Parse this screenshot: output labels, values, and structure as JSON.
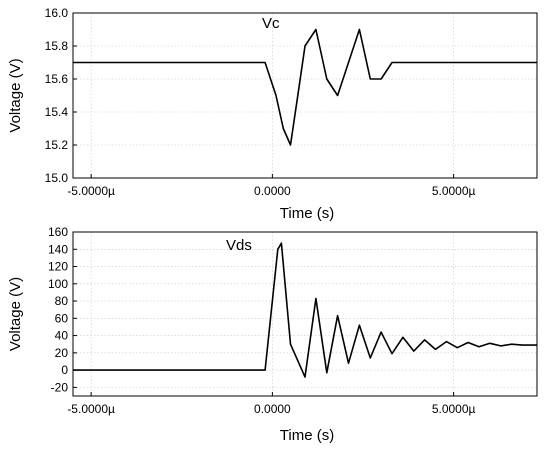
{
  "chart_data": [
    {
      "type": "line",
      "title": "Vc",
      "xlabel": "Time (s)",
      "ylabel": "Voltage (V)",
      "xlim": [
        -5.5e-06,
        7.3e-06
      ],
      "ylim": [
        15.0,
        16.0
      ],
      "x_ticks": [
        -5e-06,
        0,
        5e-06
      ],
      "x_tick_labels": [
        "-5.0000µ",
        "0.0000",
        "5.0000µ"
      ],
      "y_ticks": [
        15.0,
        15.2,
        15.4,
        15.6,
        15.8,
        16.0
      ],
      "y_tick_labels": [
        "15.0",
        "15.2",
        "15.4",
        "15.6",
        "15.8",
        "16.0"
      ],
      "grid": true,
      "series": [
        {
          "x": [
            -5.5e-06,
            -4.8e-06,
            -4e-06,
            -3.2e-06,
            -2.4e-06,
            -1.6e-06,
            -8e-07,
            -2e-07,
            1e-07,
            3e-07,
            5e-07,
            7e-07,
            9e-07,
            1.2e-06,
            1.5e-06,
            1.8e-06,
            2.1e-06,
            2.4e-06,
            2.7e-06,
            3e-06,
            3.3e-06,
            3.8e-06,
            4.5e-06,
            5.2e-06,
            6e-06,
            6.7e-06,
            7.3e-06
          ],
          "y": [
            15.7,
            15.7,
            15.7,
            15.7,
            15.7,
            15.7,
            15.7,
            15.7,
            15.5,
            15.3,
            15.2,
            15.5,
            15.8,
            15.9,
            15.6,
            15.5,
            15.7,
            15.9,
            15.6,
            15.6,
            15.7,
            15.7,
            15.7,
            15.7,
            15.7,
            15.7,
            15.7
          ]
        }
      ]
    },
    {
      "type": "line",
      "title": "Vds",
      "xlabel": "Time (s)",
      "ylabel": "Voltage (V)",
      "xlim": [
        -5.5e-06,
        7.3e-06
      ],
      "ylim": [
        -30,
        160
      ],
      "x_ticks": [
        -5e-06,
        0,
        5e-06
      ],
      "x_tick_labels": [
        "-5.0000µ",
        "0.0000",
        "5.0000µ"
      ],
      "y_ticks": [
        -20,
        0,
        20,
        40,
        60,
        80,
        100,
        120,
        140,
        160
      ],
      "y_tick_labels": [
        "-20",
        "0",
        "20",
        "40",
        "60",
        "80",
        "100",
        "120",
        "140",
        "160"
      ],
      "grid": true,
      "series": [
        {
          "x": [
            -5.5e-06,
            -2e-06,
            -2e-07,
            1.5e-07,
            2.5e-07,
            5e-07,
            9e-07,
            1.2e-06,
            1.5e-06,
            1.8e-06,
            2.1e-06,
            2.4e-06,
            2.7e-06,
            3e-06,
            3.3e-06,
            3.6e-06,
            3.9e-06,
            4.2e-06,
            4.5e-06,
            4.8e-06,
            5.1e-06,
            5.4e-06,
            5.7e-06,
            6e-06,
            6.3e-06,
            6.6e-06,
            6.9e-06,
            7.3e-06
          ],
          "y": [
            0,
            0,
            0,
            140,
            147,
            30,
            -8,
            83,
            -3,
            63,
            8,
            52,
            14,
            44,
            19,
            38,
            22,
            35,
            24,
            33,
            26,
            32,
            27,
            31,
            28,
            30,
            29,
            29
          ]
        }
      ]
    }
  ]
}
